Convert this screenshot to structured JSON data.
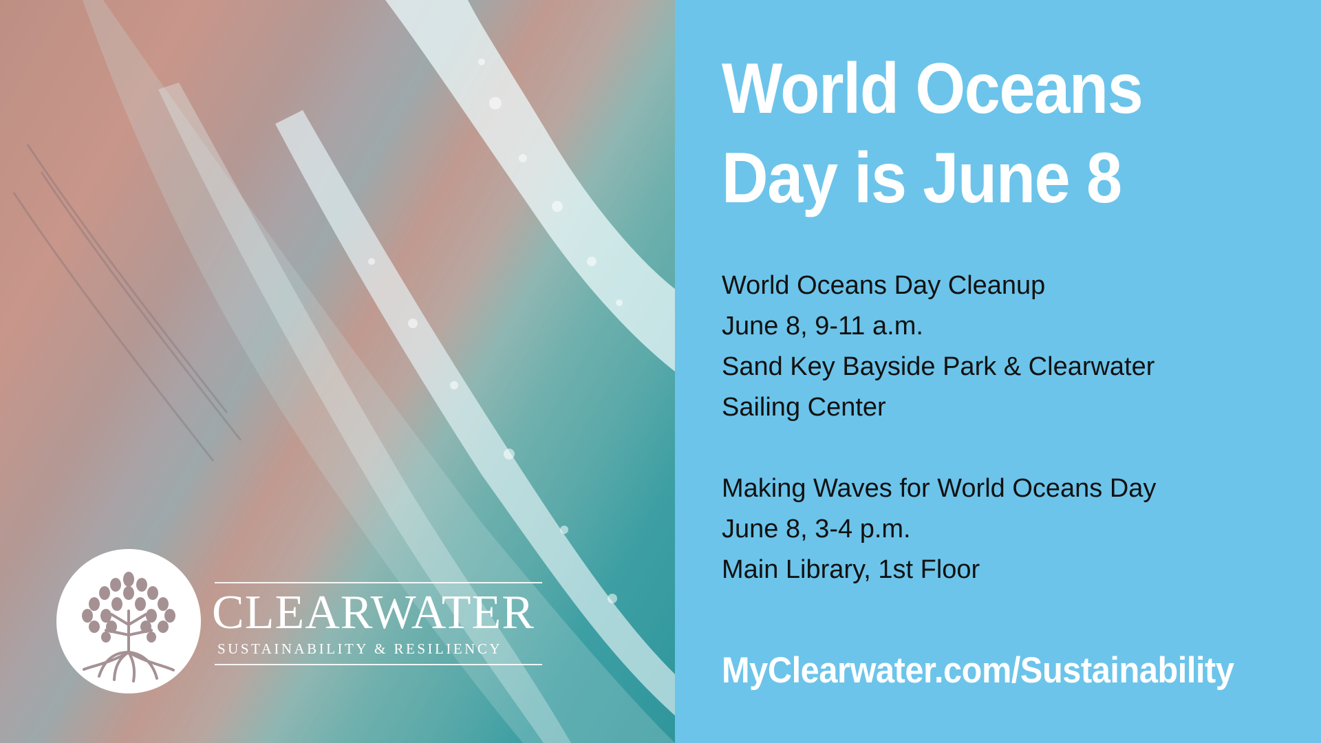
{
  "headline": {
    "line1": "World Oceans",
    "line2": "Day is June 8"
  },
  "events": [
    {
      "name": "World Oceans Day Cleanup",
      "date_time": "June 8, 9-11 a.m.",
      "location_line1": "Sand Key Bayside Park & Clearwater",
      "location_line2": "Sailing Center"
    },
    {
      "name": "Making Waves for World Oceans Day",
      "date_time": "June 8, 3-4 p.m.",
      "location_line1": "Main Library, 1st Floor"
    }
  ],
  "url": "MyClearwater.com/Sustainability",
  "logo": {
    "wordmark": "CLEARWATER",
    "tagline": "SUSTAINABILITY & RESILIENCY"
  },
  "colors": {
    "panel": "#6cc4ea",
    "text_white": "#ffffff",
    "text_dark": "#111111",
    "logo_tree": "#a59194"
  }
}
